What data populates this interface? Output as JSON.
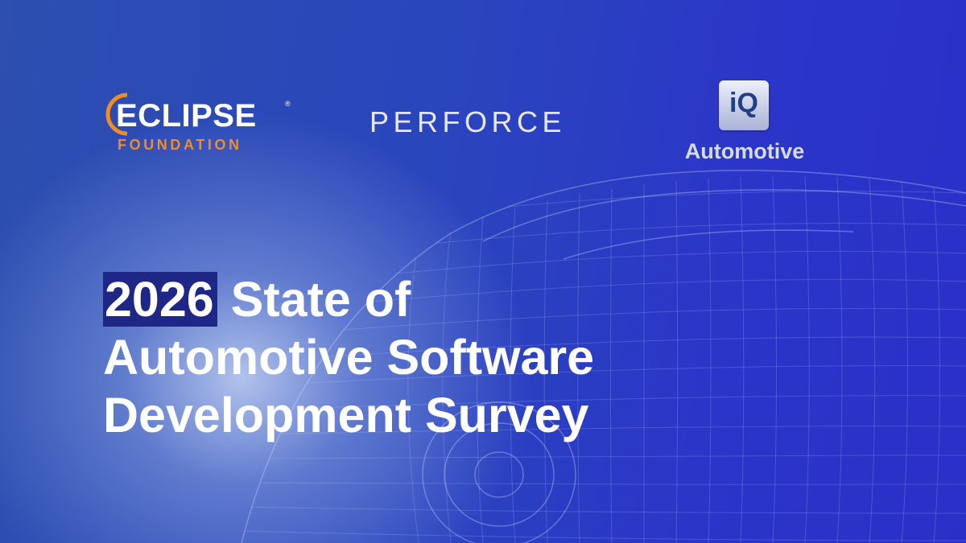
{
  "logos": {
    "eclipse": {
      "word": "ECLIPSE",
      "registered": "®",
      "sub": "FOUNDATION",
      "word_color": "#ffffff",
      "sub_color": "#f28d1f"
    },
    "perforce": {
      "word": "PERFORCE"
    },
    "iq": {
      "badge": "iQ",
      "label": "Automotive"
    }
  },
  "headline": {
    "year": "2026",
    "line1_rest": " State of",
    "line2": "Automotive Software",
    "line3": "Development Survey"
  },
  "colors": {
    "background_left": "#2d4fb0",
    "background_right": "#2a2fc8",
    "year_highlight": "#1e2686"
  },
  "background_image": "car-wireframe"
}
